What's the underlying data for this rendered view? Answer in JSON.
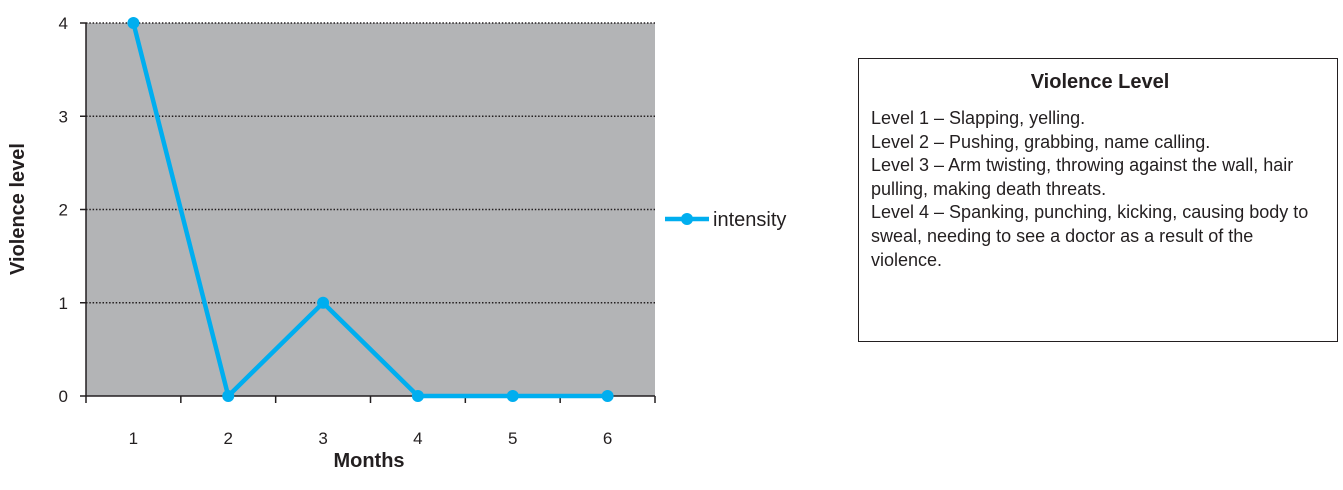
{
  "chart_data": {
    "type": "line",
    "x": [
      1,
      2,
      3,
      4,
      5,
      6
    ],
    "categories": [
      "1",
      "2",
      "3",
      "4",
      "5",
      "6"
    ],
    "series": [
      {
        "name": "intensity",
        "values": [
          4,
          0,
          1,
          0,
          0,
          0
        ]
      }
    ],
    "xlabel": "Months",
    "ylabel": "Violence level",
    "ylim": [
      0,
      4
    ],
    "yticks": [
      0,
      1,
      2,
      3,
      4
    ],
    "grid": "horizontal dotted",
    "legend_position": "right",
    "colors": {
      "plot_background": "#b3b4b6",
      "series_line": "#00aeef",
      "text": "#231f20"
    }
  },
  "key": {
    "title": "Violence Level",
    "levels": [
      "Level 1 – Slapping, yelling.",
      "Level 2 – Pushing, grabbing, name calling.",
      "Level 3 – Arm twisting, throwing against the wall, hair pulling, making death threats.",
      "Level 4 – Spanking, punching, kicking, causing body to sweal, needing to see a doctor as a result of the violence."
    ]
  }
}
